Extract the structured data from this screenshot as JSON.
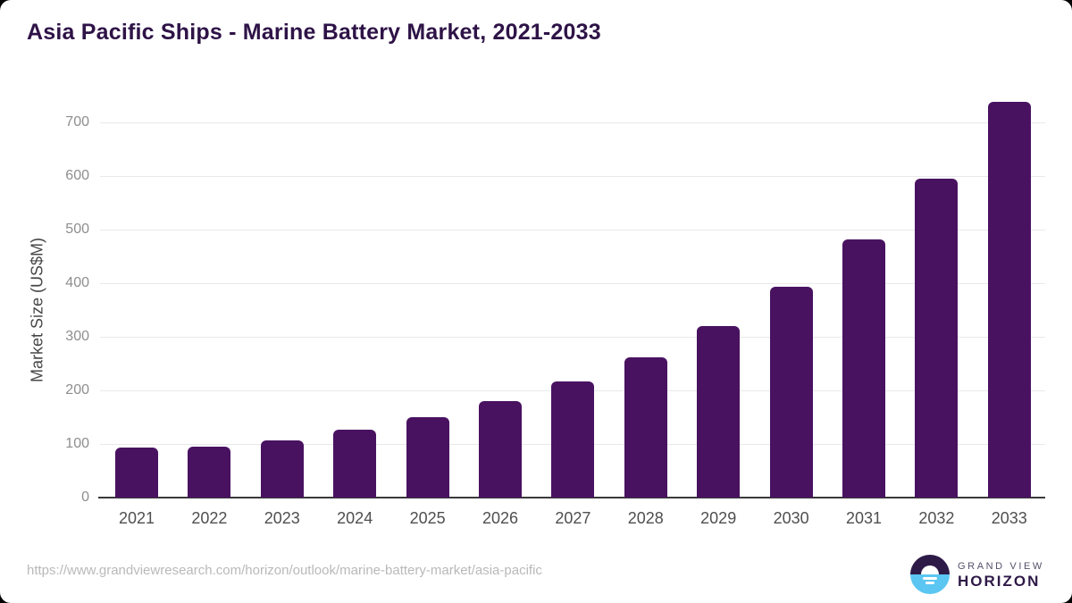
{
  "title": "Asia Pacific Ships - Marine Battery Market, 2021-2033",
  "chart_data": {
    "type": "bar",
    "title": "Asia Pacific Ships - Marine Battery Market, 2021-2033",
    "categories": [
      "2021",
      "2022",
      "2023",
      "2024",
      "2025",
      "2026",
      "2027",
      "2028",
      "2029",
      "2030",
      "2031",
      "2032",
      "2033"
    ],
    "values": [
      93,
      95,
      107,
      126,
      150,
      180,
      216,
      262,
      320,
      393,
      482,
      595,
      738
    ],
    "xlabel": "",
    "ylabel": "Market Size (US$M)",
    "ylim": [
      0,
      750
    ],
    "yticks": [
      0,
      100,
      200,
      300,
      400,
      500,
      600,
      700
    ],
    "grid": true,
    "legend": false,
    "bar_color": "#491261"
  },
  "footer": {
    "source_url": "https://www.grandviewresearch.com/horizon/outlook/marine-battery-market/asia-pacific",
    "brand": {
      "line1": "GRAND VIEW",
      "line2": "HORIZON"
    }
  },
  "colors": {
    "page_background": "#000000",
    "card_background": "#ffffff",
    "bar": "#491261",
    "title_text": "#2e1347",
    "gridline": "#e9e9e9",
    "axis_line": "#3a3a3a",
    "y_tick_label": "#8e8e8e",
    "x_tick_label": "#4f4f4f",
    "y_axis_label": "#474747",
    "url_text": "#b9b9b9",
    "brand_purple": "#2e1a47",
    "brand_blue": "#5bc6f2"
  }
}
